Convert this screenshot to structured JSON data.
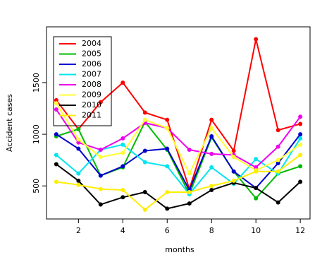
{
  "chart_data": {
    "type": "line",
    "x_label": "months",
    "y_label": "Accident cases",
    "x": [
      1,
      2,
      3,
      4,
      5,
      6,
      7,
      8,
      9,
      10,
      11,
      12
    ],
    "xlim": [
      0.56,
      12.44
    ],
    "xticks": [
      2,
      4,
      6,
      8,
      10,
      12
    ],
    "ylim": [
      180,
      2040
    ],
    "yticks": [
      500,
      1000,
      1500
    ],
    "legend": "top-left",
    "series": [
      {
        "name": "2004",
        "color": "#ff0000",
        "values": [
          1330,
          1050,
          1310,
          1500,
          1210,
          1140,
          470,
          1140,
          840,
          1920,
          1040,
          1100
        ]
      },
      {
        "name": "2005",
        "color": "#00bb00",
        "values": [
          980,
          1050,
          600,
          680,
          1120,
          850,
          420,
          970,
          640,
          380,
          620,
          690
        ]
      },
      {
        "name": "2006",
        "color": "#0000cc",
        "values": [
          1000,
          860,
          600,
          690,
          840,
          860,
          460,
          980,
          640,
          480,
          720,
          1000
        ]
      },
      {
        "name": "2007",
        "color": "#00e5ee",
        "values": [
          800,
          620,
          850,
          900,
          730,
          690,
          420,
          680,
          520,
          760,
          620,
          960
        ]
      },
      {
        "name": "2008",
        "color": "#ee00ee",
        "values": [
          1240,
          920,
          850,
          960,
          1110,
          1060,
          850,
          810,
          800,
          680,
          880,
          1170
        ]
      },
      {
        "name": "2009",
        "color": "#ffff33",
        "values": [
          1300,
          950,
          780,
          820,
          1140,
          1060,
          620,
          1060,
          780,
          650,
          750,
          900
        ]
      },
      {
        "name": "2010",
        "color": "#000000",
        "values": [
          710,
          550,
          320,
          390,
          440,
          280,
          330,
          460,
          530,
          480,
          340,
          540
        ]
      },
      {
        "name": "2011",
        "color": "#ffee00",
        "values": [
          540,
          510,
          470,
          460,
          270,
          440,
          440,
          500,
          550,
          640,
          640,
          800
        ]
      }
    ]
  }
}
